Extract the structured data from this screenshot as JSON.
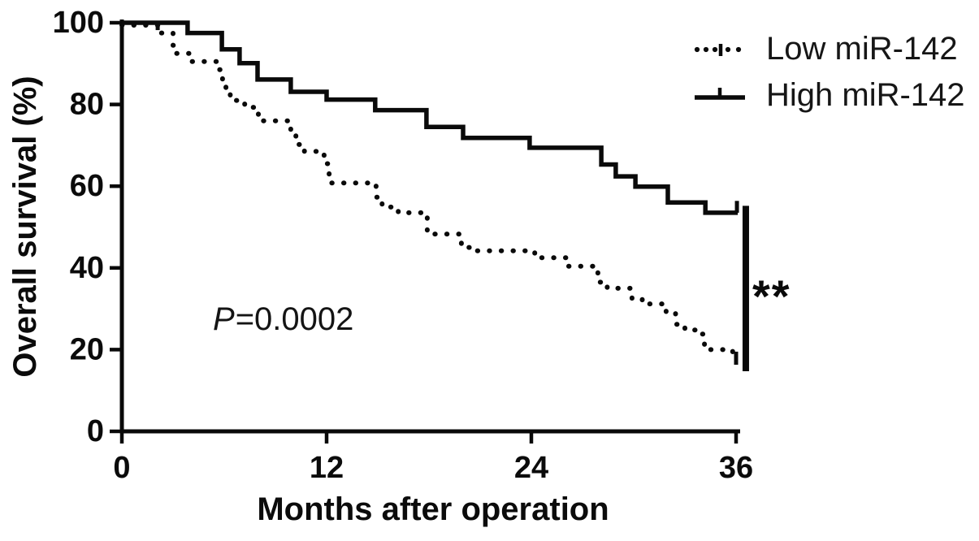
{
  "figure": {
    "background": "#ffffff",
    "ink_color": "#0a0a0a"
  },
  "chart_data": {
    "type": "line",
    "subtype": "kaplan-meier-step",
    "title": "",
    "xlabel": "Months after operation",
    "ylabel": "Overall survival (%)",
    "xlim": [
      0,
      36
    ],
    "ylim": [
      0,
      100
    ],
    "x_ticks": [
      0,
      12,
      24,
      36
    ],
    "y_ticks": [
      0,
      20,
      40,
      60,
      80,
      100
    ],
    "grid": false,
    "legend_position": "top-right",
    "series": [
      {
        "name": "High miR-142",
        "style": "solid",
        "steps": [
          [
            0,
            100
          ],
          [
            3.85,
            97.5
          ],
          [
            5.86,
            93.5
          ],
          [
            6.9,
            90.1
          ],
          [
            7.95,
            86.1
          ],
          [
            9.9,
            83.1
          ],
          [
            12.0,
            81.2
          ],
          [
            14.85,
            78.6
          ],
          [
            17.85,
            74.5
          ],
          [
            20.0,
            71.8
          ],
          [
            23.9,
            69.4
          ],
          [
            28.1,
            65.3
          ],
          [
            28.95,
            62.4
          ],
          [
            30.1,
            59.9
          ],
          [
            32.0,
            56.0
          ],
          [
            34.2,
            53.5
          ]
        ],
        "end_month": 36.1,
        "terminal_tick": {
          "month": 36.05,
          "from_pct": 53.5,
          "to_pct": 56.4
        },
        "censor_ticks": []
      },
      {
        "name": "Low miR-142",
        "style": "dotted",
        "steps": [
          [
            0,
            99.4
          ],
          [
            2.3,
            97.5
          ],
          [
            3.0,
            94.5
          ],
          [
            3.2,
            92.5
          ],
          [
            4.0,
            90.5
          ],
          [
            5.7,
            88.5
          ],
          [
            5.9,
            86.0
          ],
          [
            6.1,
            82.5
          ],
          [
            6.35,
            81.0
          ],
          [
            7.2,
            79.3
          ],
          [
            8.0,
            76.0
          ],
          [
            9.9,
            72.8
          ],
          [
            10.2,
            70.2
          ],
          [
            10.7,
            68.5
          ],
          [
            11.85,
            65.5
          ],
          [
            12.15,
            60.8
          ],
          [
            14.9,
            57.3
          ],
          [
            15.25,
            54.9
          ],
          [
            16.2,
            53.5
          ],
          [
            17.9,
            48.3
          ],
          [
            19.9,
            45.0
          ],
          [
            20.4,
            44.2
          ],
          [
            24.2,
            42.5
          ],
          [
            26.1,
            40.4
          ],
          [
            27.9,
            36.5
          ],
          [
            28.45,
            35.0
          ],
          [
            29.9,
            32.4
          ],
          [
            30.5,
            31.2
          ],
          [
            31.9,
            28.8
          ],
          [
            32.45,
            26.2
          ],
          [
            33.0,
            24.8
          ],
          [
            33.6,
            23.8
          ],
          [
            34.15,
            20.0
          ],
          [
            35.8,
            17.9
          ]
        ],
        "end_month": 36.0,
        "terminal_tick": {
          "month": 36.0,
          "from_pct": 19.5,
          "to_pct": 16.3
        },
        "censor_ticks": [
          {
            "month": 2.1,
            "from_pct": 100.4,
            "to_pct": 98.2
          }
        ]
      }
    ],
    "significance_bar": {
      "month": 36.57,
      "from_pct": 55.2,
      "to_pct": 14.7
    },
    "annotations": [
      {
        "text": "P=0.0002",
        "kind": "p-value"
      },
      {
        "text": "**",
        "kind": "significance"
      }
    ]
  },
  "legend": {
    "items": [
      {
        "label": "Low miR-142",
        "marker": "dotted-line-with-censor-tick"
      },
      {
        "label": "High miR-142",
        "marker": "solid-line-with-censor-tick"
      }
    ]
  },
  "annotations": {
    "p_italic": "P",
    "p_rest": "=0.0002",
    "significance": "**"
  }
}
